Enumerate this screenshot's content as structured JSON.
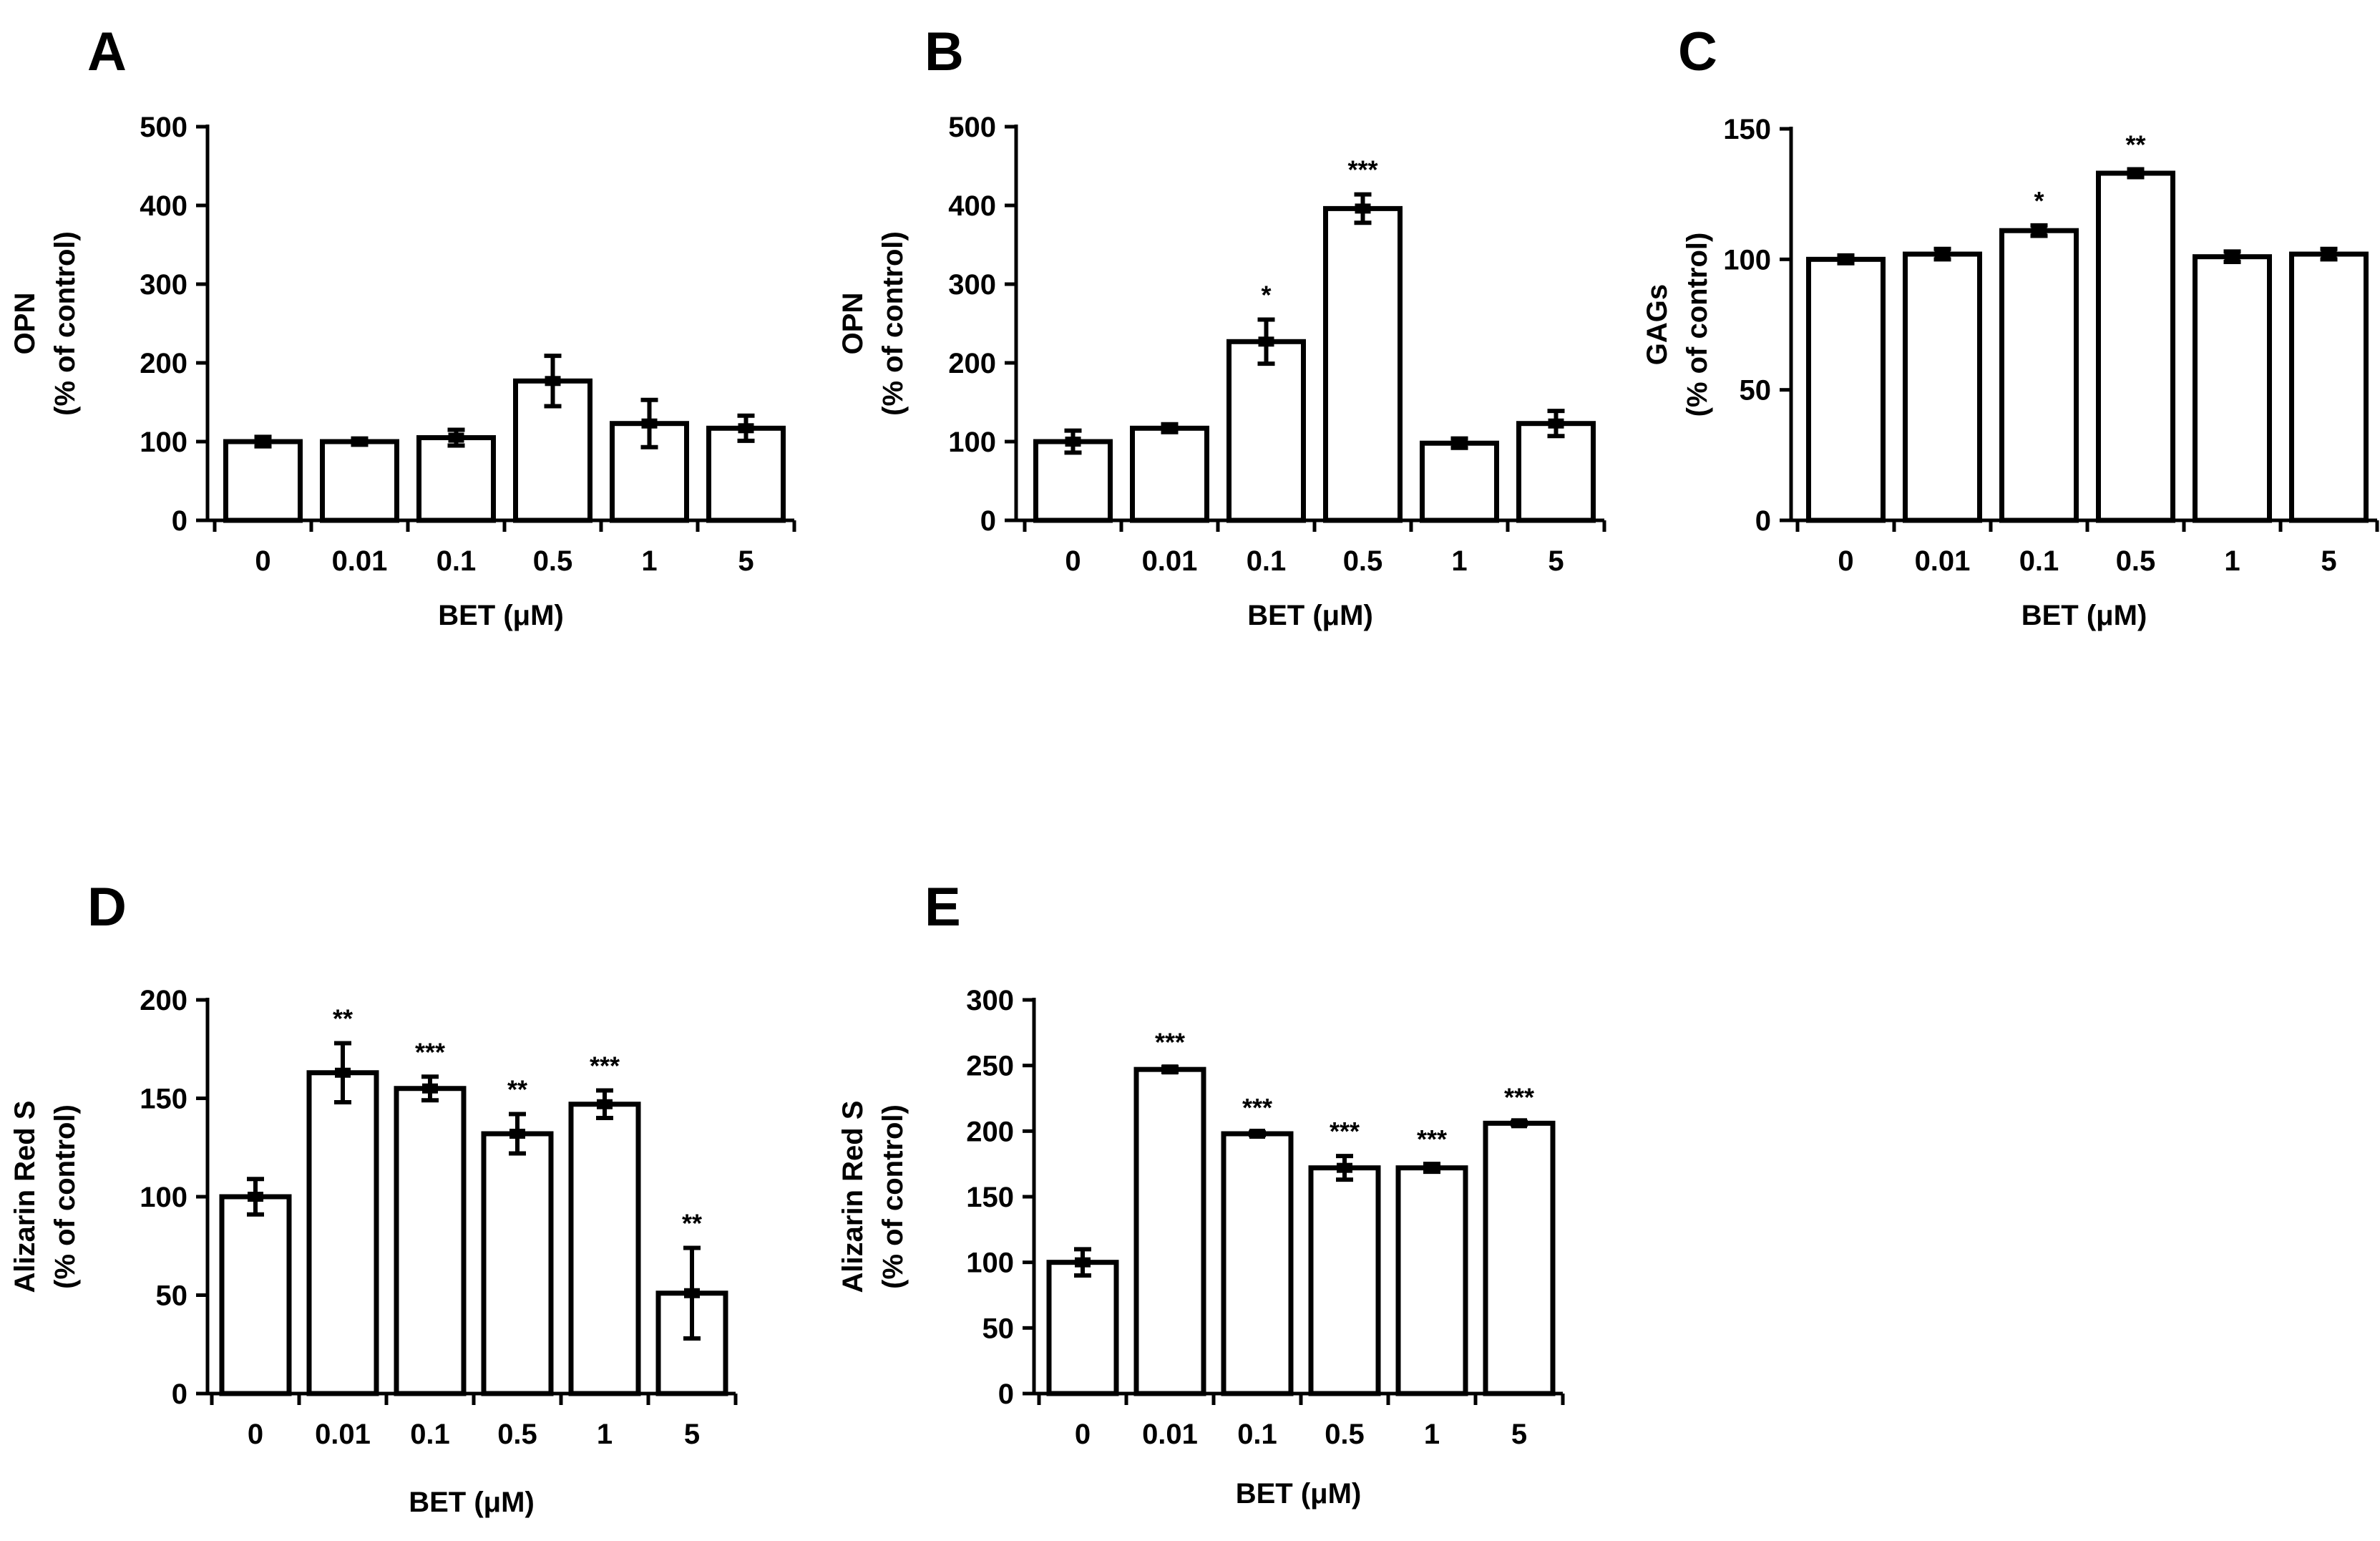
{
  "chart_data": [
    {
      "type": "bar",
      "panel": "A",
      "categories": [
        "0",
        "0.01",
        "0.1",
        "0.5",
        "1",
        "5"
      ],
      "values": [
        100,
        100,
        105,
        177,
        123,
        117
      ],
      "errors": [
        6,
        4,
        10,
        32,
        30,
        16
      ],
      "significance": [
        "",
        "",
        "",
        "",
        "",
        ""
      ],
      "ylabel": "OPN",
      "ylabel2": "(% of control)",
      "xlabel": "BET (μM)",
      "ylim": [
        0,
        500
      ],
      "yticks": [
        0,
        100,
        200,
        300,
        400,
        500
      ]
    },
    {
      "type": "bar",
      "panel": "B",
      "categories": [
        "0",
        "0.01",
        "0.1",
        "0.5",
        "1",
        "5"
      ],
      "values": [
        100,
        117,
        227,
        396,
        98,
        123
      ],
      "errors": [
        14,
        5,
        28,
        18,
        6,
        16
      ],
      "significance": [
        "",
        "",
        "*",
        "***",
        "",
        ""
      ],
      "ylabel": "OPN",
      "ylabel2": "(% of control)",
      "xlabel": "BET (μM)",
      "ylim": [
        0,
        500
      ],
      "yticks": [
        0,
        100,
        200,
        300,
        400,
        500
      ]
    },
    {
      "type": "bar",
      "panel": "C",
      "categories": [
        "0",
        "0.01",
        "0.1",
        "0.5",
        "1",
        "5"
      ],
      "values": [
        100,
        102,
        111,
        133,
        101,
        102
      ],
      "errors": [
        1.5,
        2,
        2,
        1.5,
        2,
        2
      ],
      "significance": [
        "",
        "",
        "*",
        "**",
        "",
        ""
      ],
      "ylabel": "GAGs",
      "ylabel2": "(% of control)",
      "xlabel": "BET (μM)",
      "ylim": [
        0,
        150
      ],
      "yticks": [
        0,
        50,
        100,
        150
      ]
    },
    {
      "type": "bar",
      "panel": "D",
      "categories": [
        "0",
        "0.01",
        "0.1",
        "0.5",
        "1",
        "5"
      ],
      "values": [
        100,
        163,
        155,
        132,
        147,
        51
      ],
      "errors": [
        9,
        15,
        6,
        10,
        7,
        23
      ],
      "significance": [
        "",
        "**",
        "***",
        "**",
        "***",
        "**"
      ],
      "ylabel": "Alizarin Red S",
      "ylabel2": "(% of control)",
      "xlabel": "BET (μM)",
      "ylim": [
        0,
        200
      ],
      "yticks": [
        0,
        50,
        100,
        150,
        200
      ]
    },
    {
      "type": "bar",
      "panel": "E",
      "categories": [
        "0",
        "0.01",
        "0.1",
        "0.5",
        "1",
        "5"
      ],
      "values": [
        100,
        247,
        198,
        172,
        172,
        206
      ],
      "errors": [
        10,
        2,
        1,
        9,
        3,
        1
      ],
      "significance": [
        "",
        "***",
        "***",
        "***",
        "***",
        "***"
      ],
      "ylabel": "Alizarin Red S",
      "ylabel2": "(% of control)",
      "xlabel": "BET (μM)",
      "ylim": [
        0,
        300
      ],
      "yticks": [
        0,
        50,
        100,
        150,
        200,
        250,
        300
      ]
    }
  ]
}
